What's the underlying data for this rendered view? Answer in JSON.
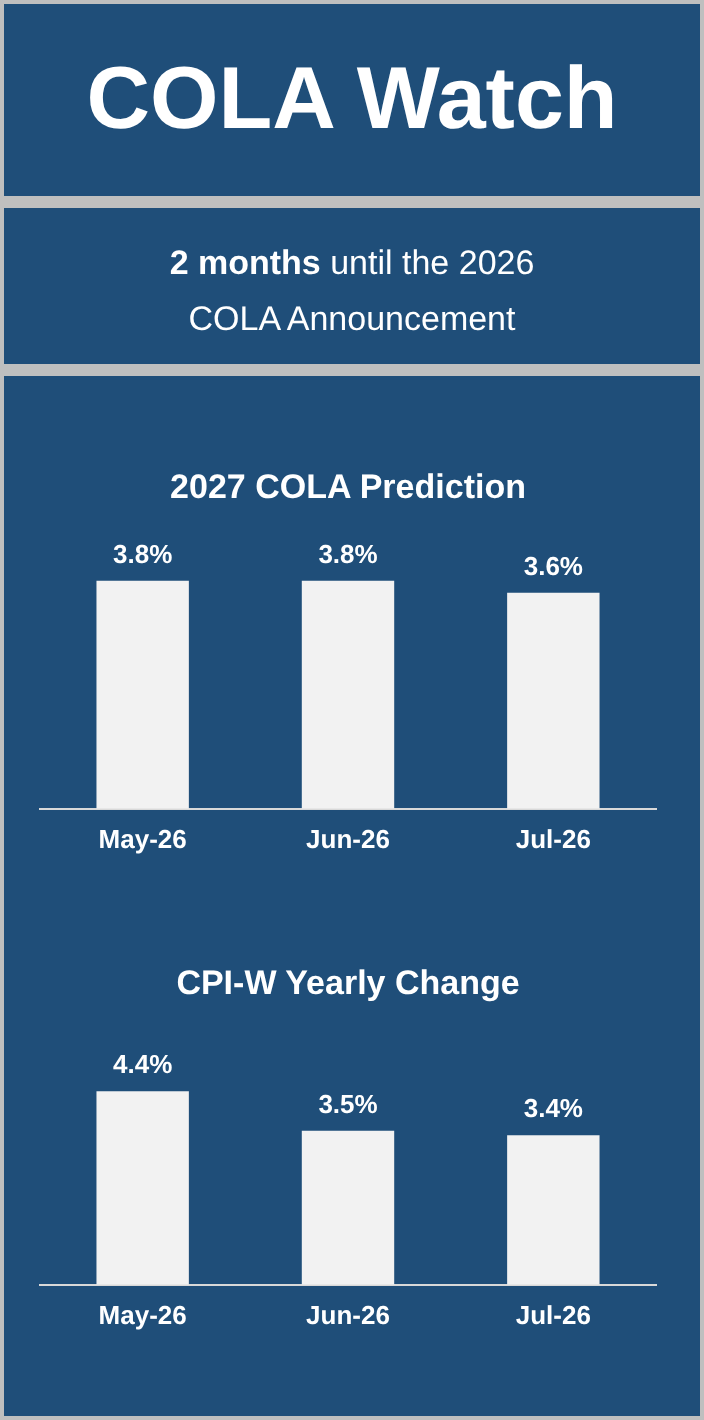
{
  "chart_data": [
    {
      "type": "other",
      "title": "COLA Watch",
      "subtitle": "2 months until the 2026 COLA Announcement"
    },
    {
      "type": "bar",
      "title": "2027 COLA Prediction",
      "categories": [
        "May-26",
        "Jun-26",
        "Jul-26"
      ],
      "values": [
        3.8,
        3.8,
        3.6
      ],
      "value_labels": [
        "3.8%",
        "3.8%",
        "3.6%"
      ],
      "color": "#f2f2f2",
      "tick_labels": "x"
    },
    {
      "type": "bar",
      "title": "CPI-W Yearly Change",
      "categories": [
        "May-26",
        "Jun-26",
        "Jul-26"
      ],
      "values": [
        4.4,
        3.5,
        3.4
      ],
      "value_labels": [
        "4.4%",
        "3.5%",
        "3.4%"
      ],
      "color": "#f2f2f2",
      "tick_labels": "x"
    }
  ]
}
